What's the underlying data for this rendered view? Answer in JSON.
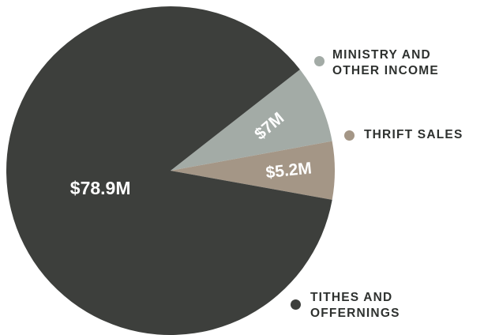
{
  "chart_data": {
    "type": "pie",
    "title": "",
    "slices": [
      {
        "label": "MINISTRY AND OTHER INCOME",
        "value": 7.0,
        "display": "$7M",
        "color": "#a3aba6"
      },
      {
        "label": "THRIFT SALES",
        "value": 5.2,
        "display": "$5.2M",
        "color": "#a49686"
      },
      {
        "label": "TITHES AND OFFERNINGS",
        "value": 78.9,
        "display": "$78.9M",
        "color": "#3d3f3c"
      }
    ],
    "legend_text_color": "#2e312f"
  }
}
